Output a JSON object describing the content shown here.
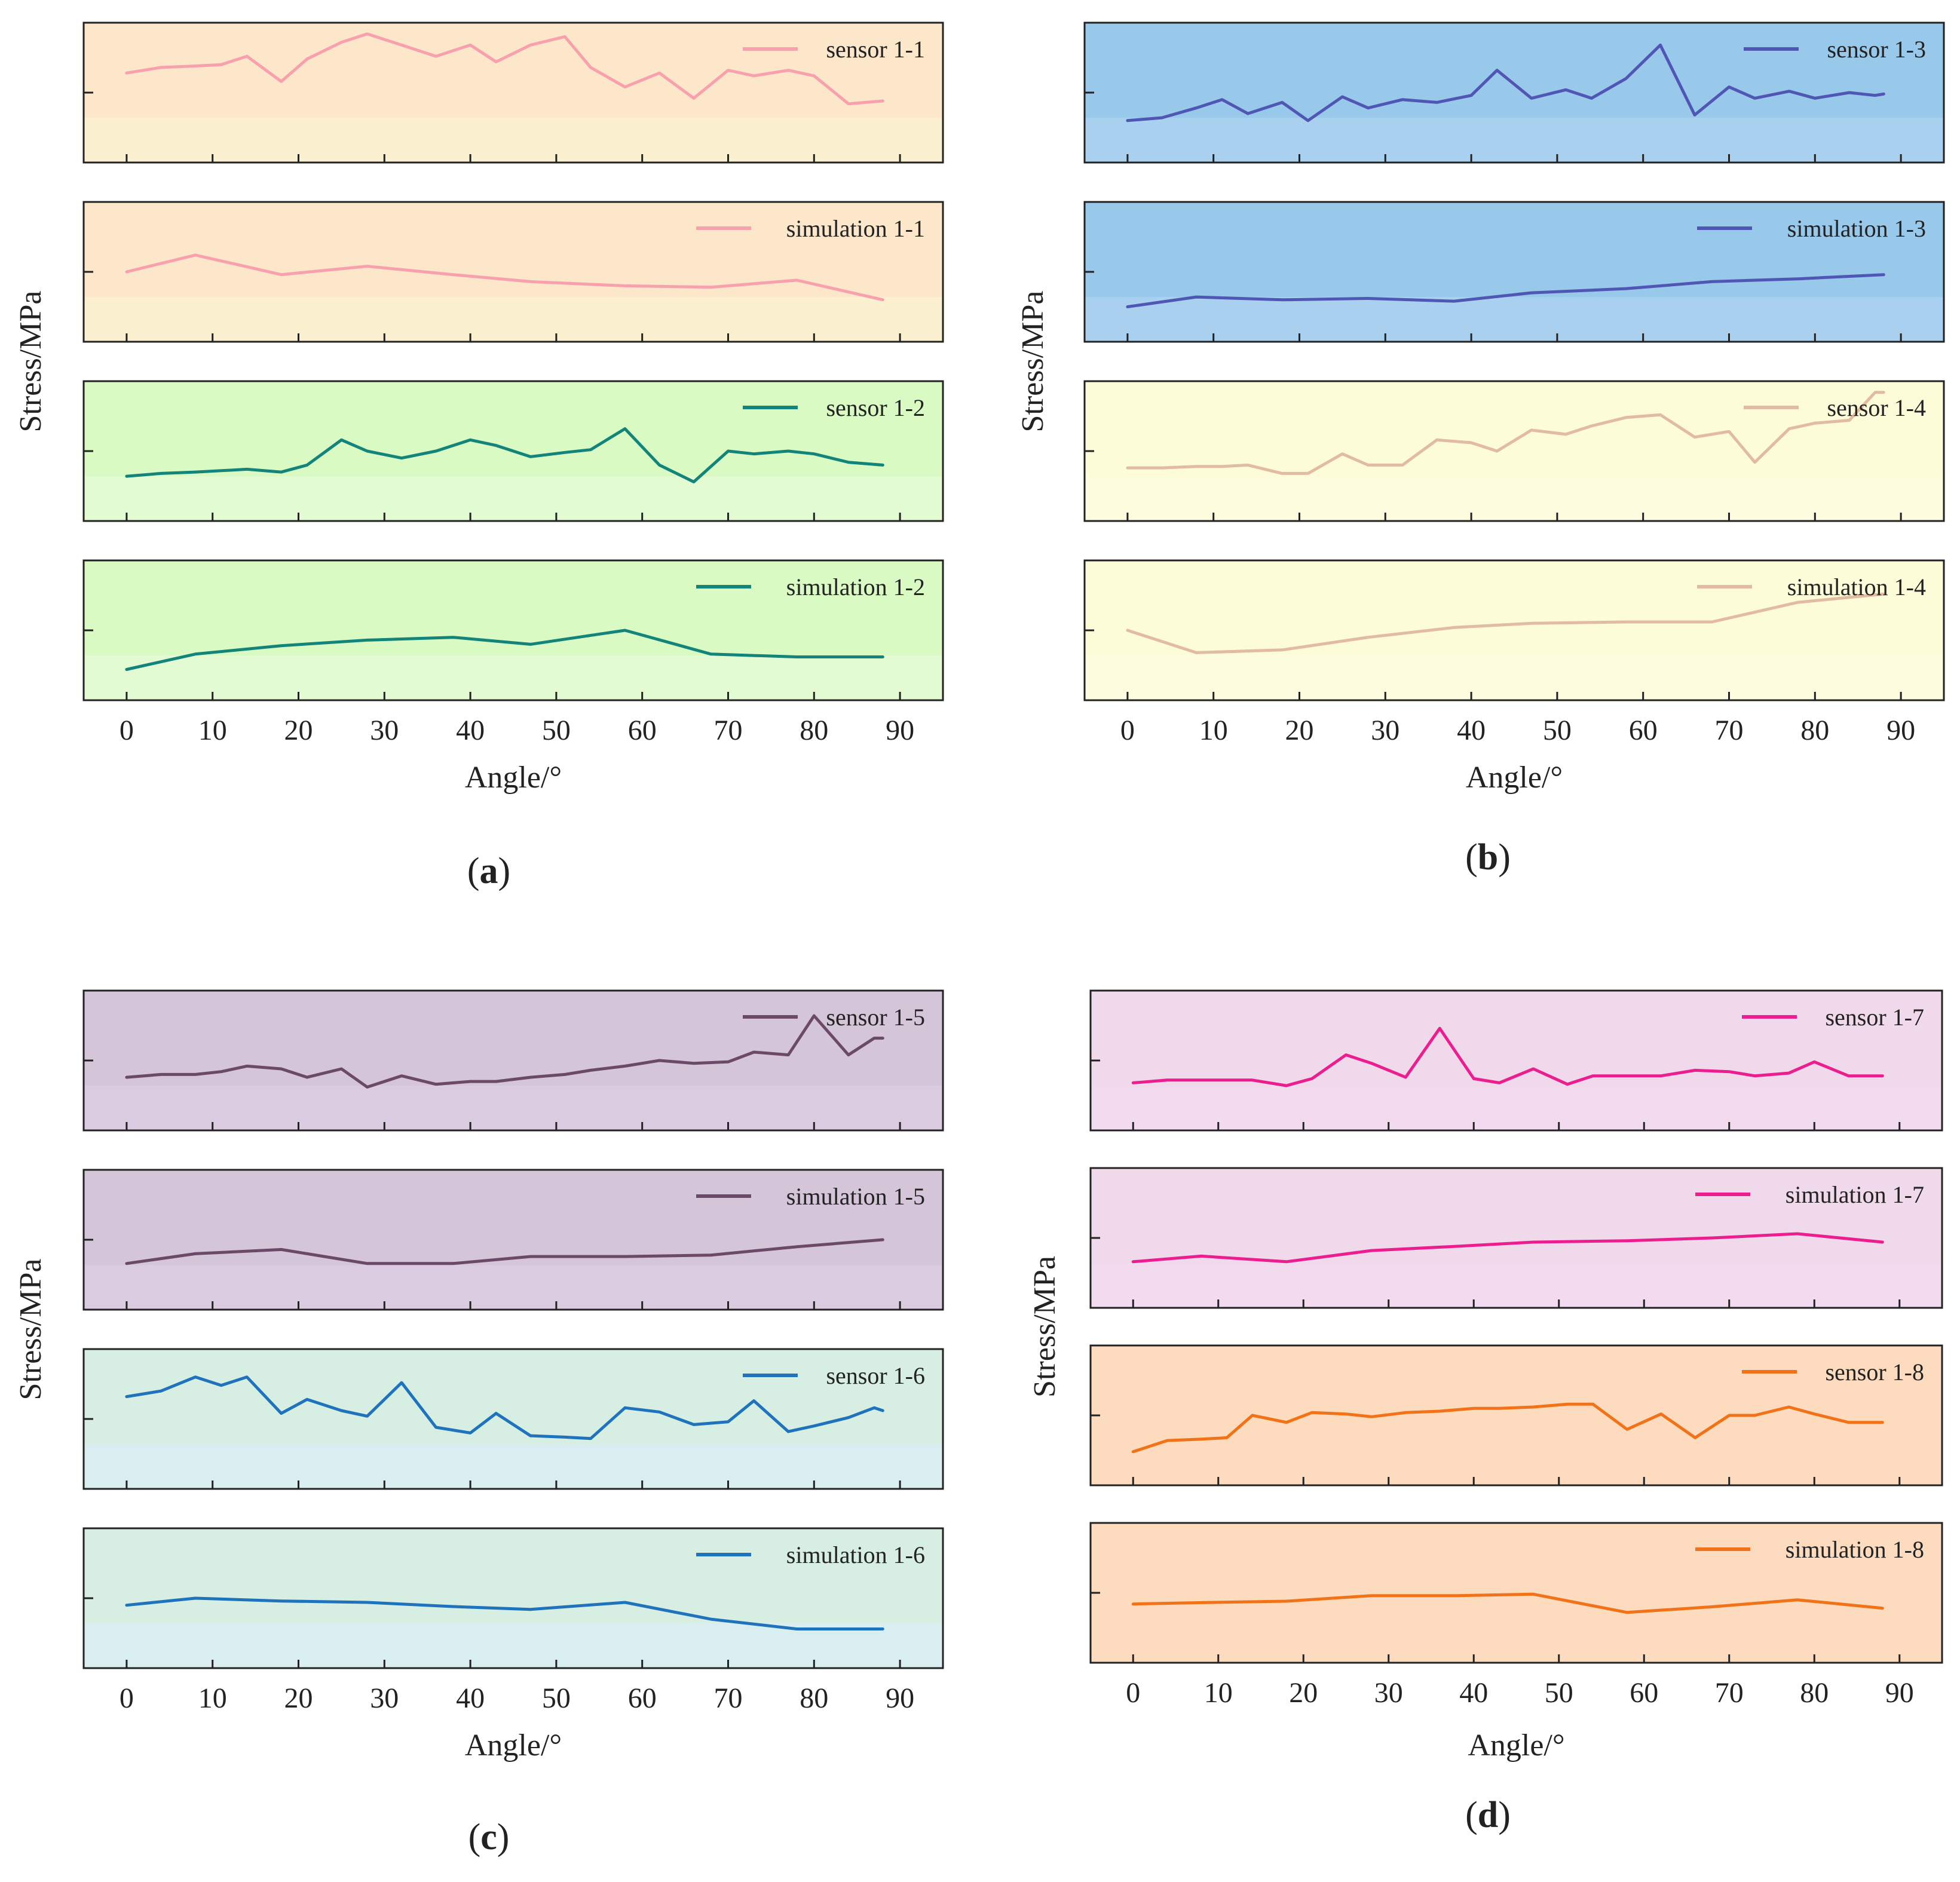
{
  "figure": {
    "panels": [
      {
        "label_open": "(",
        "label_letter": "a",
        "label_close": ")",
        "xlabel": "Angle/°",
        "ylabel": "Stress/MPa"
      },
      {
        "label_open": "(",
        "label_letter": "b",
        "label_close": ")",
        "xlabel": "Angle/°",
        "ylabel": "Stress/MPa"
      },
      {
        "label_open": "(",
        "label_letter": "c",
        "label_close": ")",
        "xlabel": "Angle/°",
        "ylabel": "Stress/MPa"
      },
      {
        "label_open": "(",
        "label_letter": "d",
        "label_close": ")",
        "xlabel": "Angle/°",
        "ylabel": "Stress/MPa"
      }
    ]
  },
  "chart_data": [
    {
      "type": "line",
      "panel": "a",
      "xlabel": "Angle/°",
      "ylabel": "Stress/MPa",
      "xlim": [
        -5,
        95
      ],
      "xticks": [
        0,
        10,
        20,
        30,
        40,
        50,
        60,
        70,
        80,
        90
      ],
      "grid": false,
      "legend_position": "top-right",
      "subplots": [
        {
          "series": [
            {
              "name": "sensor 1-1",
              "color": "#f8a1ad",
              "x": [
                0,
                4,
                8,
                11,
                14,
                18,
                21,
                25,
                28,
                32,
                36,
                40,
                43,
                47,
                51,
                54,
                58,
                62,
                66,
                70,
                73,
                77,
                80,
                84,
                88
              ],
              "y": [
                0.64,
                0.68,
                0.69,
                0.7,
                0.76,
                0.58,
                0.74,
                0.86,
                0.92,
                0.84,
                0.76,
                0.84,
                0.72,
                0.84,
                0.9,
                0.68,
                0.54,
                0.64,
                0.46,
                0.66,
                0.62,
                0.66,
                0.62,
                0.42,
                0.44
              ]
            }
          ],
          "ylim": [
            0,
            1
          ],
          "background": "#fce7cb",
          "background_bottom": "#fbf0cf"
        },
        {
          "series": [
            {
              "name": "simulation 1-1",
              "color": "#f8a1ad",
              "x": [
                0,
                8,
                18,
                28,
                38,
                47,
                58,
                68,
                78,
                88
              ],
              "y": [
                0.5,
                0.62,
                0.48,
                0.54,
                0.48,
                0.43,
                0.4,
                0.39,
                0.44,
                0.3
              ]
            }
          ],
          "ylim": [
            0,
            1
          ],
          "background": "#fce7cb",
          "background_bottom": "#fbf0cf"
        },
        {
          "series": [
            {
              "name": "sensor 1-2",
              "color": "#13847a",
              "x": [
                0,
                4,
                8,
                11,
                14,
                18,
                21,
                25,
                28,
                32,
                36,
                40,
                43,
                47,
                51,
                54,
                58,
                62,
                66,
                70,
                73,
                77,
                80,
                84,
                88
              ],
              "y": [
                0.32,
                0.34,
                0.35,
                0.36,
                0.37,
                0.35,
                0.4,
                0.58,
                0.5,
                0.45,
                0.5,
                0.58,
                0.54,
                0.46,
                0.49,
                0.51,
                0.66,
                0.4,
                0.28,
                0.5,
                0.48,
                0.5,
                0.48,
                0.42,
                0.4
              ]
            }
          ],
          "ylim": [
            0,
            1
          ],
          "background": "#d9fbc3",
          "background_bottom": "#e3fbd3"
        },
        {
          "series": [
            {
              "name": "simulation 1-2",
              "color": "#13847a",
              "x": [
                0,
                8,
                18,
                28,
                38,
                47,
                58,
                68,
                78,
                88
              ],
              "y": [
                0.22,
                0.33,
                0.39,
                0.43,
                0.45,
                0.4,
                0.5,
                0.33,
                0.31,
                0.31
              ]
            }
          ],
          "ylim": [
            0,
            1
          ],
          "background": "#d9fbc3",
          "background_bottom": "#e3fbd3"
        }
      ]
    },
    {
      "type": "line",
      "panel": "b",
      "xlabel": "Angle/°",
      "ylabel": "Stress/MPa",
      "xlim": [
        -5,
        95
      ],
      "xticks": [
        0,
        10,
        20,
        30,
        40,
        50,
        60,
        70,
        80,
        90
      ],
      "grid": false,
      "legend_position": "top-right",
      "subplots": [
        {
          "series": [
            {
              "name": "sensor 1-3",
              "color": "#5056b4",
              "x": [
                0,
                4,
                8,
                11,
                14,
                18,
                21,
                25,
                28,
                32,
                36,
                40,
                43,
                47,
                51,
                54,
                58,
                62,
                66,
                70,
                73,
                77,
                80,
                84,
                87,
                88
              ],
              "y": [
                0.3,
                0.32,
                0.39,
                0.45,
                0.35,
                0.43,
                0.3,
                0.47,
                0.39,
                0.45,
                0.43,
                0.48,
                0.66,
                0.46,
                0.52,
                0.46,
                0.6,
                0.84,
                0.34,
                0.54,
                0.46,
                0.51,
                0.46,
                0.5,
                0.48,
                0.49
              ]
            }
          ],
          "ylim": [
            0,
            1
          ],
          "background": "#98c8ea",
          "background_bottom": "#a9d1ef"
        },
        {
          "series": [
            {
              "name": "simulation 1-3",
              "color": "#5056b4",
              "x": [
                0,
                8,
                18,
                28,
                38,
                47,
                58,
                68,
                78,
                88
              ],
              "y": [
                0.25,
                0.32,
                0.3,
                0.31,
                0.29,
                0.35,
                0.38,
                0.43,
                0.45,
                0.48
              ]
            }
          ],
          "ylim": [
            0,
            1
          ],
          "background": "#98c8ea",
          "background_bottom": "#a9d1ef"
        },
        {
          "series": [
            {
              "name": "sensor 1-4",
              "color": "#e2bca2",
              "x": [
                0,
                4,
                8,
                11,
                14,
                18,
                21,
                25,
                28,
                32,
                36,
                40,
                43,
                47,
                51,
                54,
                58,
                62,
                66,
                70,
                73,
                77,
                80,
                84,
                87,
                88
              ],
              "y": [
                0.38,
                0.38,
                0.39,
                0.39,
                0.4,
                0.34,
                0.34,
                0.48,
                0.4,
                0.4,
                0.58,
                0.56,
                0.5,
                0.65,
                0.62,
                0.68,
                0.74,
                0.76,
                0.6,
                0.64,
                0.42,
                0.66,
                0.7,
                0.72,
                0.92,
                0.92
              ]
            }
          ],
          "ylim": [
            0,
            1
          ],
          "background": "#fdfcd9",
          "background_bottom": "#fdfcde"
        },
        {
          "series": [
            {
              "name": "simulation 1-4",
              "color": "#e2bca2",
              "x": [
                0,
                8,
                18,
                28,
                38,
                47,
                58,
                68,
                78,
                88
              ],
              "y": [
                0.5,
                0.34,
                0.36,
                0.45,
                0.52,
                0.55,
                0.56,
                0.56,
                0.7,
                0.76
              ]
            }
          ],
          "ylim": [
            0,
            1
          ],
          "background": "#fdfcd9",
          "background_bottom": "#fdfcde"
        }
      ]
    },
    {
      "type": "line",
      "panel": "c",
      "xlabel": "Angle/°",
      "ylabel": "Stress/MPa",
      "xlim": [
        -5,
        95
      ],
      "xticks": [
        0,
        10,
        20,
        30,
        40,
        50,
        60,
        70,
        80,
        90
      ],
      "grid": false,
      "legend_position": "top-right",
      "subplots": [
        {
          "series": [
            {
              "name": "sensor 1-5",
              "color": "#6a4a67",
              "x": [
                0,
                4,
                8,
                11,
                14,
                18,
                21,
                25,
                28,
                32,
                36,
                40,
                43,
                47,
                51,
                54,
                58,
                62,
                66,
                70,
                73,
                77,
                80,
                84,
                87,
                88
              ],
              "y": [
                0.38,
                0.4,
                0.4,
                0.42,
                0.46,
                0.44,
                0.38,
                0.44,
                0.31,
                0.39,
                0.33,
                0.35,
                0.35,
                0.38,
                0.4,
                0.43,
                0.46,
                0.5,
                0.48,
                0.49,
                0.56,
                0.54,
                0.82,
                0.54,
                0.66,
                0.66
              ]
            }
          ],
          "ylim": [
            0,
            1
          ],
          "background": "#d4c5d8",
          "background_bottom": "#dacbe0"
        },
        {
          "series": [
            {
              "name": "simulation 1-5",
              "color": "#6a4a67",
              "x": [
                0,
                8,
                18,
                28,
                38,
                47,
                58,
                68,
                78,
                88
              ],
              "y": [
                0.33,
                0.4,
                0.43,
                0.33,
                0.33,
                0.38,
                0.38,
                0.39,
                0.45,
                0.5
              ]
            }
          ],
          "ylim": [
            0,
            1
          ],
          "background": "#d4c5d8",
          "background_bottom": "#dacbe0"
        },
        {
          "series": [
            {
              "name": "sensor 1-6",
              "color": "#1f73bd",
              "x": [
                0,
                4,
                8,
                11,
                14,
                18,
                21,
                25,
                28,
                32,
                36,
                40,
                43,
                47,
                51,
                54,
                58,
                62,
                66,
                70,
                73,
                77,
                80,
                84,
                87,
                88
              ],
              "y": [
                0.66,
                0.7,
                0.8,
                0.74,
                0.8,
                0.54,
                0.64,
                0.56,
                0.52,
                0.76,
                0.44,
                0.4,
                0.54,
                0.38,
                0.37,
                0.36,
                0.58,
                0.55,
                0.46,
                0.48,
                0.63,
                0.41,
                0.45,
                0.51,
                0.58,
                0.56
              ]
            }
          ],
          "ylim": [
            0,
            1
          ],
          "background": "#d7eee3",
          "background_bottom": "#d9eef0"
        },
        {
          "series": [
            {
              "name": "simulation 1-6",
              "color": "#1f73bd",
              "x": [
                0,
                8,
                18,
                28,
                38,
                47,
                58,
                68,
                78,
                88
              ],
              "y": [
                0.45,
                0.5,
                0.48,
                0.47,
                0.44,
                0.42,
                0.47,
                0.35,
                0.28,
                0.28
              ]
            }
          ],
          "ylim": [
            0,
            1
          ],
          "background": "#d7eee3",
          "background_bottom": "#d9eef0"
        }
      ]
    },
    {
      "type": "line",
      "panel": "d",
      "xlabel": "Angle/°",
      "ylabel": "Stress/MPa",
      "xlim": [
        -5,
        95
      ],
      "xticks": [
        0,
        10,
        20,
        30,
        40,
        50,
        60,
        70,
        80,
        90
      ],
      "grid": false,
      "legend_position": "top-right",
      "subplots": [
        {
          "series": [
            {
              "name": "sensor 1-7",
              "color": "#ec1e8f",
              "x": [
                0,
                4,
                8,
                11,
                14,
                18,
                21,
                25,
                28,
                32,
                36,
                40,
                43,
                47,
                51,
                54,
                58,
                62,
                66,
                70,
                73,
                77,
                80,
                84,
                88
              ],
              "y": [
                0.34,
                0.36,
                0.36,
                0.36,
                0.36,
                0.32,
                0.37,
                0.54,
                0.48,
                0.38,
                0.73,
                0.37,
                0.34,
                0.44,
                0.33,
                0.39,
                0.39,
                0.39,
                0.43,
                0.42,
                0.39,
                0.41,
                0.49,
                0.39,
                0.39
              ]
            }
          ],
          "ylim": [
            0,
            1
          ],
          "background": "#f0d9ea",
          "background_bottom": "#f2dbee"
        },
        {
          "series": [
            {
              "name": "simulation 1-7",
              "color": "#ec1e8f",
              "x": [
                0,
                8,
                18,
                28,
                38,
                47,
                58,
                68,
                78,
                88
              ],
              "y": [
                0.33,
                0.37,
                0.33,
                0.41,
                0.44,
                0.47,
                0.48,
                0.5,
                0.53,
                0.47
              ]
            }
          ],
          "ylim": [
            0,
            1
          ],
          "background": "#f0d9ea",
          "background_bottom": "#f2dbee"
        },
        {
          "series": [
            {
              "name": "sensor 1-8",
              "color": "#f27218",
              "x": [
                0,
                4,
                8,
                11,
                14,
                18,
                21,
                25,
                28,
                32,
                36,
                40,
                43,
                47,
                51,
                54,
                58,
                62,
                66,
                70,
                73,
                77,
                80,
                84,
                88
              ],
              "y": [
                0.24,
                0.32,
                0.33,
                0.34,
                0.5,
                0.45,
                0.52,
                0.51,
                0.49,
                0.52,
                0.53,
                0.55,
                0.55,
                0.56,
                0.58,
                0.58,
                0.4,
                0.51,
                0.34,
                0.5,
                0.5,
                0.56,
                0.51,
                0.45,
                0.45
              ]
            }
          ],
          "ylim": [
            0,
            1
          ],
          "background": "#fcdbbe",
          "background_bottom": "#fcdbbe"
        },
        {
          "series": [
            {
              "name": "simulation 1-8",
              "color": "#f27218",
              "x": [
                0,
                8,
                18,
                28,
                38,
                47,
                58,
                68,
                78,
                88
              ],
              "y": [
                0.42,
                0.43,
                0.44,
                0.48,
                0.48,
                0.49,
                0.36,
                0.4,
                0.45,
                0.39
              ]
            }
          ],
          "ylim": [
            0,
            1
          ],
          "background": "#fcdbbe",
          "background_bottom": "#fcdbbe"
        }
      ]
    }
  ]
}
